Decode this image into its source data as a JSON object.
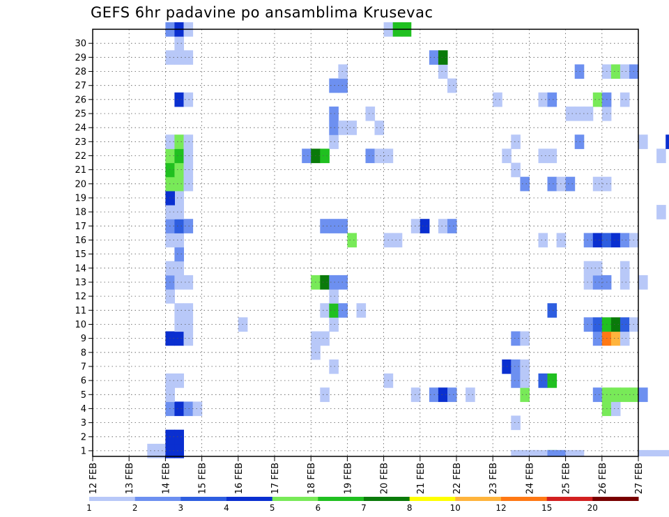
{
  "title": "GEFS 6hr padavine po ansamblima Krusevac",
  "chart_data": {
    "type": "heatmap",
    "title": "GEFS 6hr padavine po ansamblima Krusevac",
    "x_tick_labels": [
      "12 FEB",
      "13 FEB",
      "14 FEB",
      "15 FEB",
      "16 FEB",
      "17 FEB",
      "18 FEB",
      "19 FEB",
      "20 FEB",
      "21 FEB",
      "22 FEB",
      "23 FEB",
      "24 FEB",
      "25 FEB",
      "26 FEB",
      "27 FEB"
    ],
    "y_tick_labels": [
      "1",
      "2",
      "3",
      "4",
      "5",
      "6",
      "7",
      "8",
      "9",
      "10",
      "11",
      "12",
      "13",
      "14",
      "15",
      "16",
      "17",
      "18",
      "19",
      "20",
      "21",
      "22",
      "23",
      "24",
      "25",
      "26",
      "27",
      "28",
      "29",
      "30"
    ],
    "ylim": [
      0,
      30
    ],
    "grid": true,
    "colorbar": {
      "labels": [
        "1",
        "2",
        "3",
        "4",
        "5",
        "6",
        "7",
        "8",
        "10",
        "12",
        "15",
        "20"
      ],
      "colors": [
        "#b8c8f8",
        "#6d90f0",
        "#2e5ee0",
        "#0a2fd0",
        "#78ea58",
        "#20c020",
        "#0a7a0a",
        "#ffff00",
        "#ffb43c",
        "#ff7814",
        "#d22020",
        "#780000"
      ]
    },
    "cells": [
      [
        2,
        0,
        4
      ],
      [
        2.25,
        0,
        2
      ],
      [
        12,
        0,
        1
      ],
      [
        12.5,
        0,
        1
      ],
      [
        12.5,
        0,
        6
      ],
      [
        12.75,
        0,
        1
      ],
      [
        15,
        0,
        1
      ],
      [
        15.25,
        0,
        1
      ],
      [
        15.5,
        0,
        1
      ],
      [
        15.75,
        0,
        1
      ],
      [
        16,
        0,
        1
      ],
      [
        16.25,
        0,
        1
      ],
      [
        11.5,
        0,
        1
      ],
      [
        11.75,
        0,
        1
      ],
      [
        12,
        0,
        1
      ],
      [
        12.25,
        0,
        1
      ],
      [
        12.5,
        0,
        2
      ],
      [
        12.75,
        0,
        2
      ],
      [
        13,
        0,
        1
      ],
      [
        13.25,
        0,
        1
      ],
      [
        1.5,
        1,
        1
      ],
      [
        1.75,
        1,
        1
      ],
      [
        2,
        1,
        4
      ],
      [
        2.25,
        1,
        4
      ],
      [
        2,
        2,
        4
      ],
      [
        2.25,
        2,
        4
      ],
      [
        11.5,
        3,
        1
      ],
      [
        2,
        4,
        2
      ],
      [
        2.25,
        4,
        4
      ],
      [
        2.5,
        4,
        2
      ],
      [
        2.75,
        4,
        1
      ],
      [
        14,
        4,
        5
      ],
      [
        14.25,
        4,
        1
      ],
      [
        2,
        5,
        1
      ],
      [
        6.25,
        5,
        1
      ],
      [
        8.75,
        5,
        1
      ],
      [
        9.25,
        5,
        2
      ],
      [
        9.5,
        5,
        4
      ],
      [
        9.75,
        5,
        2
      ],
      [
        10.25,
        5,
        1
      ],
      [
        11.75,
        5,
        5
      ],
      [
        13.75,
        5,
        2
      ],
      [
        14,
        5,
        5
      ],
      [
        14.25,
        5,
        5
      ],
      [
        14.5,
        5,
        5
      ],
      [
        14.75,
        5,
        5
      ],
      [
        15,
        5,
        2
      ],
      [
        2,
        6,
        1
      ],
      [
        2.25,
        6,
        1
      ],
      [
        11.5,
        6,
        2
      ],
      [
        11.75,
        6,
        1
      ],
      [
        12.25,
        6,
        3
      ],
      [
        12.5,
        6,
        6
      ],
      [
        8,
        6,
        1
      ],
      [
        6.5,
        7,
        1
      ],
      [
        11.25,
        7,
        4
      ],
      [
        11.5,
        7,
        2
      ],
      [
        11.75,
        7,
        1
      ],
      [
        6,
        8,
        1
      ],
      [
        2,
        9,
        4
      ],
      [
        2.25,
        9,
        4
      ],
      [
        2.5,
        9,
        1
      ],
      [
        6,
        9,
        1
      ],
      [
        6.25,
        9,
        1
      ],
      [
        11.5,
        9,
        2
      ],
      [
        11.75,
        9,
        1
      ],
      [
        13.75,
        9,
        2
      ],
      [
        14,
        9,
        10
      ],
      [
        14.25,
        9,
        9
      ],
      [
        14.5,
        9,
        1
      ],
      [
        2.25,
        10,
        1
      ],
      [
        2.5,
        10,
        1
      ],
      [
        4,
        10,
        1
      ],
      [
        6.5,
        10,
        1
      ],
      [
        13.5,
        10,
        2
      ],
      [
        13.75,
        10,
        3
      ],
      [
        14,
        10,
        6
      ],
      [
        14.25,
        10,
        7
      ],
      [
        14.5,
        10,
        3
      ],
      [
        14.75,
        10,
        1
      ],
      [
        2.25,
        11,
        1
      ],
      [
        2.5,
        11,
        1
      ],
      [
        6.25,
        11,
        1
      ],
      [
        6.5,
        11,
        6
      ],
      [
        6.75,
        11,
        2
      ],
      [
        7.25,
        11,
        1
      ],
      [
        12.5,
        11,
        3
      ],
      [
        2,
        12,
        1
      ],
      [
        6.5,
        12,
        1
      ],
      [
        2,
        13,
        2
      ],
      [
        2.25,
        13,
        1
      ],
      [
        2.5,
        13,
        1
      ],
      [
        6,
        13,
        5
      ],
      [
        6.25,
        13,
        7
      ],
      [
        6.5,
        13,
        2
      ],
      [
        6.75,
        13,
        2
      ],
      [
        13.5,
        13,
        1
      ],
      [
        13.75,
        13,
        2
      ],
      [
        14,
        13,
        2
      ],
      [
        14.5,
        13,
        1
      ],
      [
        15,
        13,
        1
      ],
      [
        2,
        14,
        1
      ],
      [
        2.25,
        14,
        1
      ],
      [
        13.5,
        14,
        1
      ],
      [
        13.75,
        14,
        1
      ],
      [
        14.5,
        14,
        1
      ],
      [
        2.25,
        15,
        2
      ],
      [
        2,
        16,
        1
      ],
      [
        2.25,
        16,
        1
      ],
      [
        7,
        16,
        5
      ],
      [
        8,
        16,
        1
      ],
      [
        8.25,
        16,
        1
      ],
      [
        12.25,
        16,
        1
      ],
      [
        12.75,
        16,
        1
      ],
      [
        13.5,
        16,
        2
      ],
      [
        13.75,
        16,
        4
      ],
      [
        14,
        16,
        3
      ],
      [
        14.25,
        16,
        4
      ],
      [
        14.5,
        16,
        2
      ],
      [
        14.75,
        16,
        1
      ],
      [
        2,
        17,
        2
      ],
      [
        2.25,
        17,
        3
      ],
      [
        2.5,
        17,
        2
      ],
      [
        6.25,
        17,
        2
      ],
      [
        6.5,
        17,
        2
      ],
      [
        6.75,
        17,
        2
      ],
      [
        8.75,
        17,
        1
      ],
      [
        9,
        17,
        4
      ],
      [
        9.5,
        17,
        1
      ],
      [
        9.75,
        17,
        2
      ],
      [
        2,
        18,
        1
      ],
      [
        2.25,
        18,
        1
      ],
      [
        15.5,
        18,
        1
      ],
      [
        2,
        19,
        1
      ],
      [
        2.25,
        19,
        1
      ],
      [
        2,
        19,
        4
      ],
      [
        2,
        20,
        5
      ],
      [
        2.25,
        20,
        5
      ],
      [
        2.5,
        20,
        1
      ],
      [
        11.75,
        20,
        2
      ],
      [
        12.5,
        20,
        2
      ],
      [
        12.75,
        20,
        1
      ],
      [
        13,
        20,
        2
      ],
      [
        13.75,
        20,
        1
      ],
      [
        14,
        20,
        1
      ],
      [
        2,
        21,
        6
      ],
      [
        2.25,
        21,
        5
      ],
      [
        2.5,
        21,
        1
      ],
      [
        11.5,
        21,
        1
      ],
      [
        2,
        22,
        5
      ],
      [
        2.25,
        22,
        6
      ],
      [
        2.5,
        22,
        1
      ],
      [
        5.75,
        22,
        2
      ],
      [
        6,
        22,
        7
      ],
      [
        6.25,
        22,
        6
      ],
      [
        7.5,
        22,
        2
      ],
      [
        7.75,
        22,
        1
      ],
      [
        8,
        22,
        1
      ],
      [
        11.25,
        22,
        1
      ],
      [
        12.25,
        22,
        1
      ],
      [
        12.5,
        22,
        1
      ],
      [
        15.5,
        22,
        1
      ],
      [
        2,
        23,
        1
      ],
      [
        2.25,
        23,
        5
      ],
      [
        2.5,
        23,
        1
      ],
      [
        6.5,
        23,
        1
      ],
      [
        11.5,
        23,
        1
      ],
      [
        13.25,
        23,
        2
      ],
      [
        15,
        23,
        1
      ],
      [
        15.75,
        23,
        4
      ],
      [
        6.5,
        24,
        2
      ],
      [
        6.75,
        24,
        1
      ],
      [
        7,
        24,
        1
      ],
      [
        7.75,
        24,
        1
      ],
      [
        6.5,
        25,
        2
      ],
      [
        7.5,
        25,
        1
      ],
      [
        13,
        25,
        1
      ],
      [
        13.25,
        25,
        1
      ],
      [
        13.5,
        25,
        1
      ],
      [
        14,
        25,
        1
      ],
      [
        2.25,
        26,
        4
      ],
      [
        2.5,
        26,
        1
      ],
      [
        11,
        26,
        1
      ],
      [
        12.25,
        26,
        1
      ],
      [
        12.5,
        26,
        2
      ],
      [
        13.75,
        26,
        5
      ],
      [
        14,
        26,
        2
      ],
      [
        14.5,
        26,
        1
      ],
      [
        6.5,
        27,
        2
      ],
      [
        6.75,
        27,
        2
      ],
      [
        9.75,
        27,
        1
      ],
      [
        6.75,
        28,
        1
      ],
      [
        9.5,
        28,
        1
      ],
      [
        13.25,
        28,
        2
      ],
      [
        14,
        28,
        1
      ],
      [
        14.25,
        28,
        5
      ],
      [
        14.5,
        28,
        1
      ],
      [
        14.75,
        28,
        2
      ],
      [
        2,
        29,
        1
      ],
      [
        2.25,
        29,
        1
      ],
      [
        2.5,
        29,
        1
      ],
      [
        9.25,
        29,
        2
      ],
      [
        9.5,
        29,
        7
      ],
      [
        2.25,
        30,
        1
      ],
      [
        2,
        31,
        2
      ],
      [
        2.25,
        31,
        4
      ],
      [
        2.5,
        31,
        1
      ],
      [
        8,
        31,
        1
      ],
      [
        8.25,
        31,
        6
      ],
      [
        8.5,
        31,
        6
      ]
    ]
  }
}
